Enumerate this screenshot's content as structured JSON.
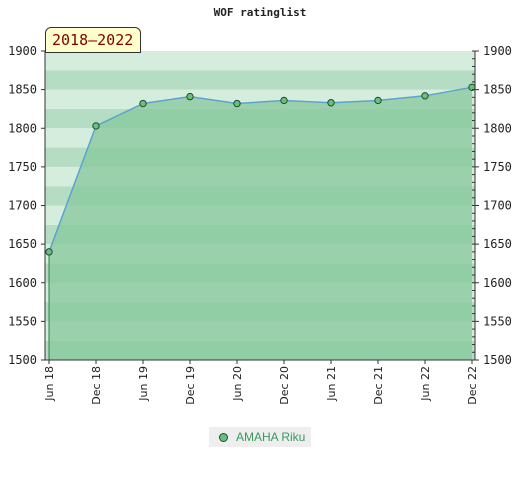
{
  "chart_data": {
    "type": "line",
    "title": "WOF ratinglist",
    "range_label": "2018–2022",
    "x": [
      "Jun 18",
      "Dec 18",
      "Jun 19",
      "Dec 19",
      "Jun 20",
      "Dec 20",
      "Jun 21",
      "Dec 21",
      "Jun 22",
      "Dec 22"
    ],
    "series": [
      {
        "name": "AMAHA Riku",
        "values": [
          1640,
          1803,
          1832,
          1841,
          1832,
          1836,
          1833,
          1836,
          1842,
          1853
        ]
      }
    ],
    "ylim": [
      1500,
      1900
    ],
    "yticks": [
      1500,
      1550,
      1600,
      1650,
      1700,
      1750,
      1800,
      1850,
      1900
    ],
    "grid": true,
    "legend_position": "bottom-center",
    "colors": {
      "line": "#5ba3d0",
      "marker": "#6abf7e",
      "marker_edge": "#1e4d2b",
      "fill": "#86c79b",
      "band_dark": "#b5ddc3",
      "band_light": "#d5eddd",
      "legend_text": "#3a9a5c",
      "badge_bg": "#ffffcc",
      "badge_text": "#800000"
    }
  }
}
